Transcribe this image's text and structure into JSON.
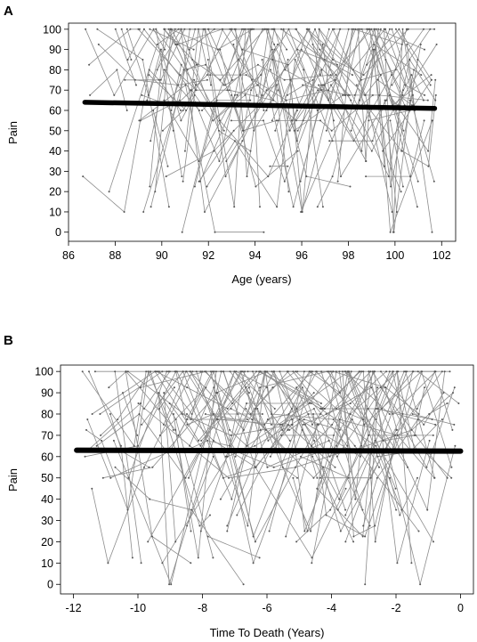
{
  "chart_data": [
    {
      "panel_label": "A",
      "type": "line",
      "description_type": "spaghetti",
      "xlabel": "Age (years)",
      "ylabel": "Pain",
      "xlim": [
        86,
        102.6
      ],
      "ylim": [
        -4.5,
        103
      ],
      "xticks": [
        86,
        88,
        90,
        92,
        94,
        96,
        98,
        100,
        102
      ],
      "yticks": [
        0,
        10,
        20,
        30,
        40,
        50,
        60,
        70,
        80,
        90,
        100
      ],
      "x_range_observed": [
        86.6,
        101.8
      ],
      "y_levels": [
        0,
        10,
        12.5,
        20,
        22.5,
        25,
        27.5,
        32.5,
        35,
        40,
        45,
        50,
        55,
        60,
        62.5,
        65,
        67.5,
        70,
        72.5,
        75,
        77.5,
        80,
        82.5,
        85,
        90,
        92.5,
        100
      ],
      "subject_count_approx": 140,
      "fitted_line": {
        "x": [
          86.7,
          101.7
        ],
        "y": [
          64,
          61
        ]
      },
      "grid": false,
      "legend": "none"
    },
    {
      "panel_label": "B",
      "type": "line",
      "description_type": "spaghetti",
      "xlabel": "Time To Death (Years)",
      "ylabel": "Pain",
      "xlim": [
        -12.4,
        0.4
      ],
      "ylim": [
        -4.5,
        103
      ],
      "xticks": [
        -12,
        -10,
        -8,
        -6,
        -4,
        -2,
        0
      ],
      "yticks": [
        0,
        10,
        20,
        30,
        40,
        50,
        60,
        70,
        80,
        90,
        100
      ],
      "x_range_observed": [
        -11.8,
        0
      ],
      "y_levels": [
        0,
        10,
        12.5,
        20,
        22.5,
        25,
        27.5,
        32.5,
        35,
        40,
        45,
        50,
        55,
        60,
        62.5,
        65,
        67.5,
        70,
        72.5,
        75,
        77.5,
        80,
        82.5,
        85,
        90,
        92.5,
        100
      ],
      "subject_count_approx": 140,
      "fitted_line": {
        "x": [
          -11.9,
          0
        ],
        "y": [
          63,
          62.6
        ]
      },
      "grid": false,
      "legend": "none"
    }
  ],
  "style": {
    "trajectory_color": "#8c8c8c",
    "fit_color": "#000000",
    "axis_color": "#000000"
  }
}
